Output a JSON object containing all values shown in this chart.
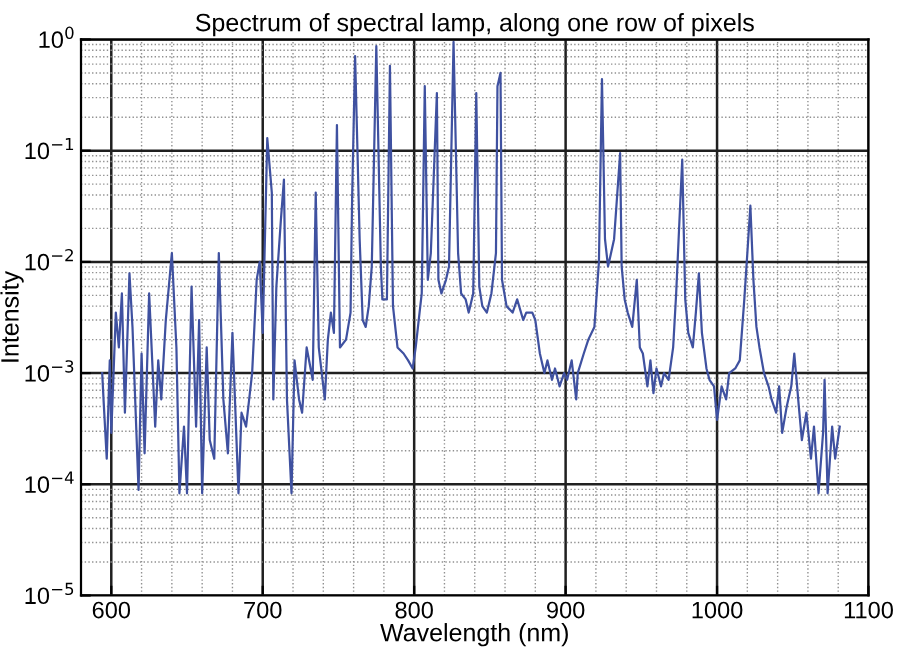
{
  "chart_data": {
    "type": "line",
    "title": "Spectrum of spectral lamp, along one row of pixels",
    "xlabel": "Wavelength (nm)",
    "ylabel": "Intensity",
    "log": "y",
    "grid": true,
    "xlim": [
      580,
      1100
    ],
    "xticks": [
      600,
      700,
      800,
      900,
      1000,
      1100
    ],
    "ylim": [
      1e-05,
      1
    ],
    "yticks": [
      {
        "value": 1e-05,
        "label": "10$^{−5}$"
      },
      {
        "value": 0.0001,
        "label": "10$^{−4}$"
      },
      {
        "value": 0.001,
        "label": "10$^{−3}$"
      },
      {
        "value": 0.01,
        "label": "10$^{−2}$"
      },
      {
        "value": 0.1,
        "label": "10$^{−1}$"
      },
      {
        "value": 1,
        "label": "10$^{0}$"
      }
    ],
    "series": [
      {
        "color": "#3f51a0",
        "x": [
          594,
          595,
          597,
          599,
          600,
          603,
          605,
          607,
          609,
          612,
          614,
          618,
          620,
          622,
          625,
          629,
          631,
          633,
          636,
          640,
          643,
          645,
          648,
          650,
          653,
          656,
          658,
          660,
          663,
          665,
          668,
          671,
          674,
          677,
          680,
          684,
          686,
          689,
          693,
          696,
          698,
          700,
          703,
          706,
          707,
          709,
          712,
          714,
          716,
          719,
          721,
          724,
          726,
          729,
          733,
          735,
          737,
          741,
          743,
          745,
          747,
          749,
          751,
          755,
          758,
          759,
          761,
          764,
          766,
          768,
          770,
          772,
          775,
          778,
          779,
          782,
          784,
          786,
          789,
          793,
          796,
          799,
          801,
          803,
          805,
          807,
          809,
          811,
          815,
          816,
          818,
          821,
          823,
          826,
          829,
          831,
          834,
          836,
          839,
          841,
          843,
          845,
          848,
          851,
          854,
          855,
          857,
          858,
          861,
          865,
          868,
          872,
          874,
          878,
          880,
          883,
          886,
          888,
          891,
          893,
          896,
          899,
          901,
          904,
          907,
          908,
          912,
          915,
          919,
          922,
          924,
          926,
          928,
          930,
          932,
          936,
          937,
          939,
          941,
          944,
          947,
          949,
          951,
          954,
          956,
          958,
          960,
          963,
          965,
          968,
          971,
          973,
          975,
          977,
          979,
          981,
          984,
          986,
          988,
          990,
          993,
          995,
          998,
          1000,
          1003,
          1006,
          1008,
          1012,
          1015,
          1018,
          1020,
          1022,
          1024,
          1026,
          1028,
          1031,
          1034,
          1036,
          1039,
          1041,
          1043,
          1046,
          1049,
          1051,
          1054,
          1056,
          1059,
          1062,
          1064,
          1067,
          1070,
          1071,
          1073,
          1076,
          1078,
          1081
        ],
        "values": [
          0.001,
          0.00054,
          0.00017,
          0.0013,
          0.00029,
          0.0035,
          0.0017,
          0.0052,
          0.00044,
          0.0079,
          0.0026,
          8.9e-05,
          0.0015,
          0.00019,
          0.0052,
          0.00033,
          0.0013,
          0.00058,
          0.003,
          0.012,
          0.0017,
          8.3e-05,
          0.00033,
          8.3e-05,
          0.006,
          0.00033,
          0.003,
          8.3e-05,
          0.0017,
          0.00025,
          0.00017,
          0.012,
          0.00058,
          0.00019,
          0.0023,
          8.3e-05,
          0.00044,
          0.00033,
          0.001,
          0.0069,
          0.01,
          0.0023,
          0.13,
          0.042,
          0.00058,
          0.006,
          0.024,
          0.055,
          0.00058,
          8.3e-05,
          0.0013,
          0.00058,
          0.00044,
          0.0017,
          0.00087,
          0.042,
          0.0017,
          0.00058,
          0.002,
          0.0035,
          0.0023,
          0.17,
          0.0017,
          0.002,
          0.0035,
          0.036,
          0.71,
          0.016,
          0.003,
          0.0026,
          0.004,
          0.0091,
          0.87,
          0.0091,
          0.0046,
          0.0046,
          0.58,
          0.004,
          0.0017,
          0.0015,
          0.0013,
          0.0011,
          0.0017,
          0.003,
          0.0052,
          0.38,
          0.0069,
          0.012,
          0.33,
          0.0069,
          0.0052,
          0.0069,
          0.0091,
          0.95,
          0.012,
          0.0052,
          0.0046,
          0.0035,
          0.0052,
          0.33,
          0.006,
          0.004,
          0.0035,
          0.0052,
          0.012,
          0.38,
          0.5,
          0.0069,
          0.004,
          0.0035,
          0.0046,
          0.003,
          0.0035,
          0.0035,
          0.003,
          0.0015,
          0.001,
          0.0013,
          0.00087,
          0.0011,
          0.00076,
          0.001,
          0.00087,
          0.0013,
          0.00058,
          0.001,
          0.0015,
          0.002,
          0.0026,
          0.01,
          0.44,
          0.016,
          0.0091,
          0.012,
          0.016,
          0.095,
          0.0091,
          0.0046,
          0.0035,
          0.0026,
          0.0069,
          0.0017,
          0.0015,
          0.00076,
          0.0013,
          0.00066,
          0.0011,
          0.00076,
          0.001,
          0.00087,
          0.0017,
          0.0052,
          0.021,
          0.083,
          0.0046,
          0.0023,
          0.0017,
          0.0035,
          0.0079,
          0.0023,
          0.0011,
          0.00087,
          0.00076,
          0.00038,
          0.00076,
          0.00058,
          0.001,
          0.0011,
          0.0013,
          0.0046,
          0.012,
          0.032,
          0.0069,
          0.0026,
          0.0017,
          0.001,
          0.00076,
          0.00058,
          0.00044,
          0.00076,
          0.00029,
          0.0005,
          0.00076,
          0.0015,
          0.0005,
          0.00025,
          0.00044,
          0.00017,
          0.00033,
          8.3e-05,
          0.00029,
          0.00087,
          8.3e-05,
          0.00033,
          0.00017,
          0.00033
        ]
      }
    ]
  }
}
